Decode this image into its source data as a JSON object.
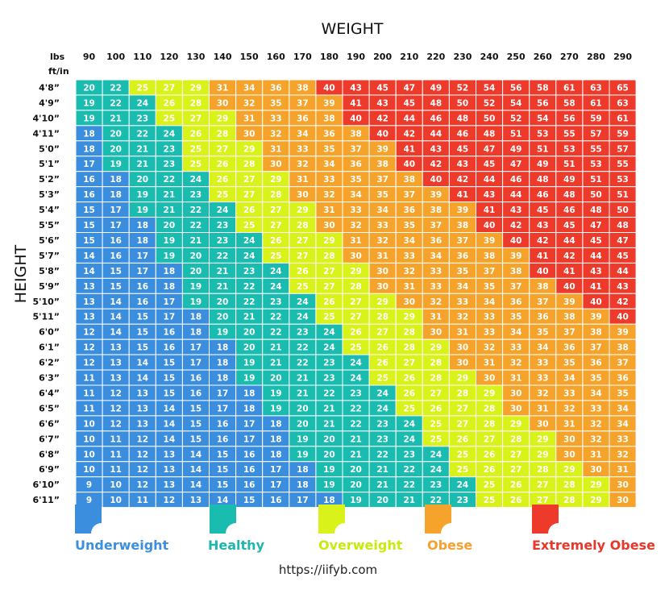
{
  "chart_data": {
    "type": "heatmap",
    "title": "WEIGHT",
    "ylabel": "HEIGHT",
    "lbs_label": "lbs",
    "ftin_label": "ft/in",
    "weights": [
      90,
      100,
      110,
      120,
      130,
      140,
      150,
      160,
      170,
      180,
      190,
      200,
      210,
      220,
      230,
      240,
      250,
      260,
      270,
      280,
      290
    ],
    "heights": [
      "4'8”",
      "4'9”",
      "4'10”",
      "4'11”",
      "5'0”",
      "5'1”",
      "5'2”",
      "5'3”",
      "5'4”",
      "5'5”",
      "5'6”",
      "5'7”",
      "5'8”",
      "5'9”",
      "5'10”",
      "5'11”",
      "6'0”",
      "6'1”",
      "6'2”",
      "6'3”",
      "6'4”",
      "6'5”",
      "6'6”",
      "6'7”",
      "6'8”",
      "6'9”",
      "6'10”",
      "6'11”"
    ],
    "values": [
      [
        20,
        22,
        25,
        27,
        29,
        31,
        34,
        36,
        38,
        40,
        43,
        45,
        47,
        49,
        52,
        54,
        56,
        58,
        61,
        63,
        65
      ],
      [
        19,
        22,
        24,
        26,
        28,
        30,
        32,
        35,
        37,
        39,
        41,
        43,
        45,
        48,
        50,
        52,
        54,
        56,
        58,
        61,
        63
      ],
      [
        19,
        21,
        23,
        25,
        27,
        29,
        31,
        33,
        36,
        38,
        40,
        42,
        44,
        46,
        48,
        50,
        52,
        54,
        56,
        59,
        61
      ],
      [
        18,
        20,
        22,
        24,
        26,
        28,
        30,
        32,
        34,
        36,
        38,
        40,
        42,
        44,
        46,
        48,
        51,
        53,
        55,
        57,
        59
      ],
      [
        18,
        20,
        21,
        23,
        25,
        27,
        29,
        31,
        33,
        35,
        37,
        39,
        41,
        43,
        45,
        47,
        49,
        51,
        53,
        55,
        57
      ],
      [
        17,
        19,
        21,
        23,
        25,
        26,
        28,
        30,
        32,
        34,
        36,
        38,
        40,
        42,
        43,
        45,
        47,
        49,
        51,
        53,
        55
      ],
      [
        16,
        18,
        20,
        22,
        24,
        26,
        27,
        29,
        31,
        33,
        35,
        37,
        38,
        40,
        42,
        44,
        46,
        48,
        49,
        51,
        53
      ],
      [
        16,
        18,
        19,
        21,
        23,
        25,
        27,
        28,
        30,
        32,
        34,
        35,
        37,
        39,
        41,
        43,
        44,
        46,
        48,
        50,
        51
      ],
      [
        15,
        17,
        19,
        21,
        22,
        24,
        26,
        27,
        29,
        31,
        33,
        34,
        36,
        38,
        39,
        41,
        43,
        45,
        46,
        48,
        50
      ],
      [
        15,
        17,
        18,
        20,
        22,
        23,
        25,
        27,
        28,
        30,
        32,
        33,
        35,
        37,
        38,
        40,
        42,
        43,
        45,
        47,
        48
      ],
      [
        15,
        16,
        18,
        19,
        21,
        23,
        24,
        26,
        27,
        29,
        31,
        32,
        34,
        36,
        37,
        39,
        40,
        42,
        44,
        45,
        47
      ],
      [
        14,
        16,
        17,
        19,
        20,
        22,
        24,
        25,
        27,
        28,
        30,
        31,
        33,
        34,
        36,
        38,
        39,
        41,
        42,
        44,
        45
      ],
      [
        14,
        15,
        17,
        18,
        20,
        21,
        23,
        24,
        26,
        27,
        29,
        30,
        32,
        33,
        35,
        37,
        38,
        40,
        41,
        43,
        44
      ],
      [
        13,
        15,
        16,
        18,
        19,
        21,
        22,
        24,
        25,
        27,
        28,
        30,
        31,
        33,
        34,
        35,
        37,
        38,
        40,
        41,
        43
      ],
      [
        13,
        14,
        16,
        17,
        19,
        20,
        22,
        23,
        24,
        26,
        27,
        29,
        30,
        32,
        33,
        34,
        36,
        37,
        39,
        40,
        42
      ],
      [
        13,
        14,
        15,
        17,
        18,
        20,
        21,
        22,
        24,
        25,
        27,
        28,
        29,
        31,
        32,
        33,
        35,
        36,
        38,
        39,
        40
      ],
      [
        12,
        14,
        15,
        16,
        18,
        19,
        20,
        22,
        23,
        24,
        26,
        27,
        28,
        30,
        31,
        33,
        34,
        35,
        37,
        38,
        39
      ],
      [
        12,
        13,
        15,
        16,
        17,
        18,
        20,
        21,
        22,
        24,
        25,
        26,
        28,
        29,
        30,
        32,
        33,
        34,
        36,
        37,
        38
      ],
      [
        12,
        13,
        14,
        15,
        17,
        18,
        19,
        21,
        22,
        23,
        24,
        26,
        27,
        28,
        30,
        31,
        32,
        33,
        35,
        36,
        37
      ],
      [
        11,
        13,
        14,
        15,
        16,
        18,
        19,
        20,
        21,
        23,
        24,
        25,
        26,
        28,
        29,
        30,
        31,
        33,
        34,
        35,
        36
      ],
      [
        11,
        12,
        13,
        15,
        16,
        17,
        18,
        19,
        21,
        22,
        23,
        24,
        26,
        27,
        28,
        29,
        30,
        32,
        33,
        34,
        35
      ],
      [
        11,
        12,
        13,
        14,
        15,
        17,
        18,
        19,
        20,
        21,
        22,
        24,
        25,
        26,
        27,
        28,
        30,
        31,
        32,
        33,
        34
      ],
      [
        10,
        12,
        13,
        14,
        15,
        16,
        17,
        18,
        20,
        21,
        22,
        23,
        24,
        25,
        27,
        28,
        29,
        30,
        31,
        32,
        34
      ],
      [
        10,
        11,
        12,
        14,
        15,
        16,
        17,
        18,
        19,
        20,
        21,
        23,
        24,
        25,
        26,
        27,
        28,
        29,
        30,
        32,
        33
      ],
      [
        10,
        11,
        12,
        13,
        14,
        15,
        16,
        18,
        19,
        20,
        21,
        22,
        23,
        24,
        25,
        26,
        27,
        29,
        30,
        31,
        32
      ],
      [
        10,
        11,
        12,
        13,
        14,
        15,
        16,
        17,
        18,
        19,
        20,
        21,
        22,
        24,
        25,
        26,
        27,
        28,
        29,
        30,
        31
      ],
      [
        9,
        10,
        12,
        13,
        14,
        15,
        16,
        17,
        18,
        19,
        20,
        21,
        22,
        23,
        24,
        25,
        26,
        27,
        28,
        29,
        30
      ],
      [
        9,
        10,
        11,
        12,
        13,
        14,
        15,
        16,
        17,
        18,
        19,
        20,
        21,
        22,
        23,
        25,
        26,
        27,
        28,
        29,
        30
      ]
    ],
    "categories": [
      {
        "name": "Underweight",
        "color": "#3b8ddd",
        "min": 0,
        "max": 18.4
      },
      {
        "name": "Healthy",
        "color": "#1bbcb0",
        "min": 18.5,
        "max": 24.9
      },
      {
        "name": "Overweight",
        "color": "#d8f21a",
        "min": 25,
        "max": 29.9
      },
      {
        "name": "Obese",
        "color": "#f6a32b",
        "min": 30,
        "max": 39.9
      },
      {
        "name": "Extremely Obese",
        "color": "#ee3a2b",
        "min": 40,
        "max": 100
      }
    ]
  },
  "legend": [
    {
      "label": "Underweight",
      "color": "#3b8ddd",
      "text_color": "#3d8fdc"
    },
    {
      "label": "Healthy",
      "color": "#1bbcb0",
      "text_color": "#1fb7ad"
    },
    {
      "label": "Overweight",
      "color": "#d8f21a",
      "text_color": "#c8ea0e"
    },
    {
      "label": "Obese",
      "color": "#f6a32b",
      "text_color": "#f5a030"
    },
    {
      "label": "Extremely Obese",
      "color": "#ee3a2b",
      "text_color": "#e8382b"
    }
  ],
  "source_url": "https://iifyb.com"
}
